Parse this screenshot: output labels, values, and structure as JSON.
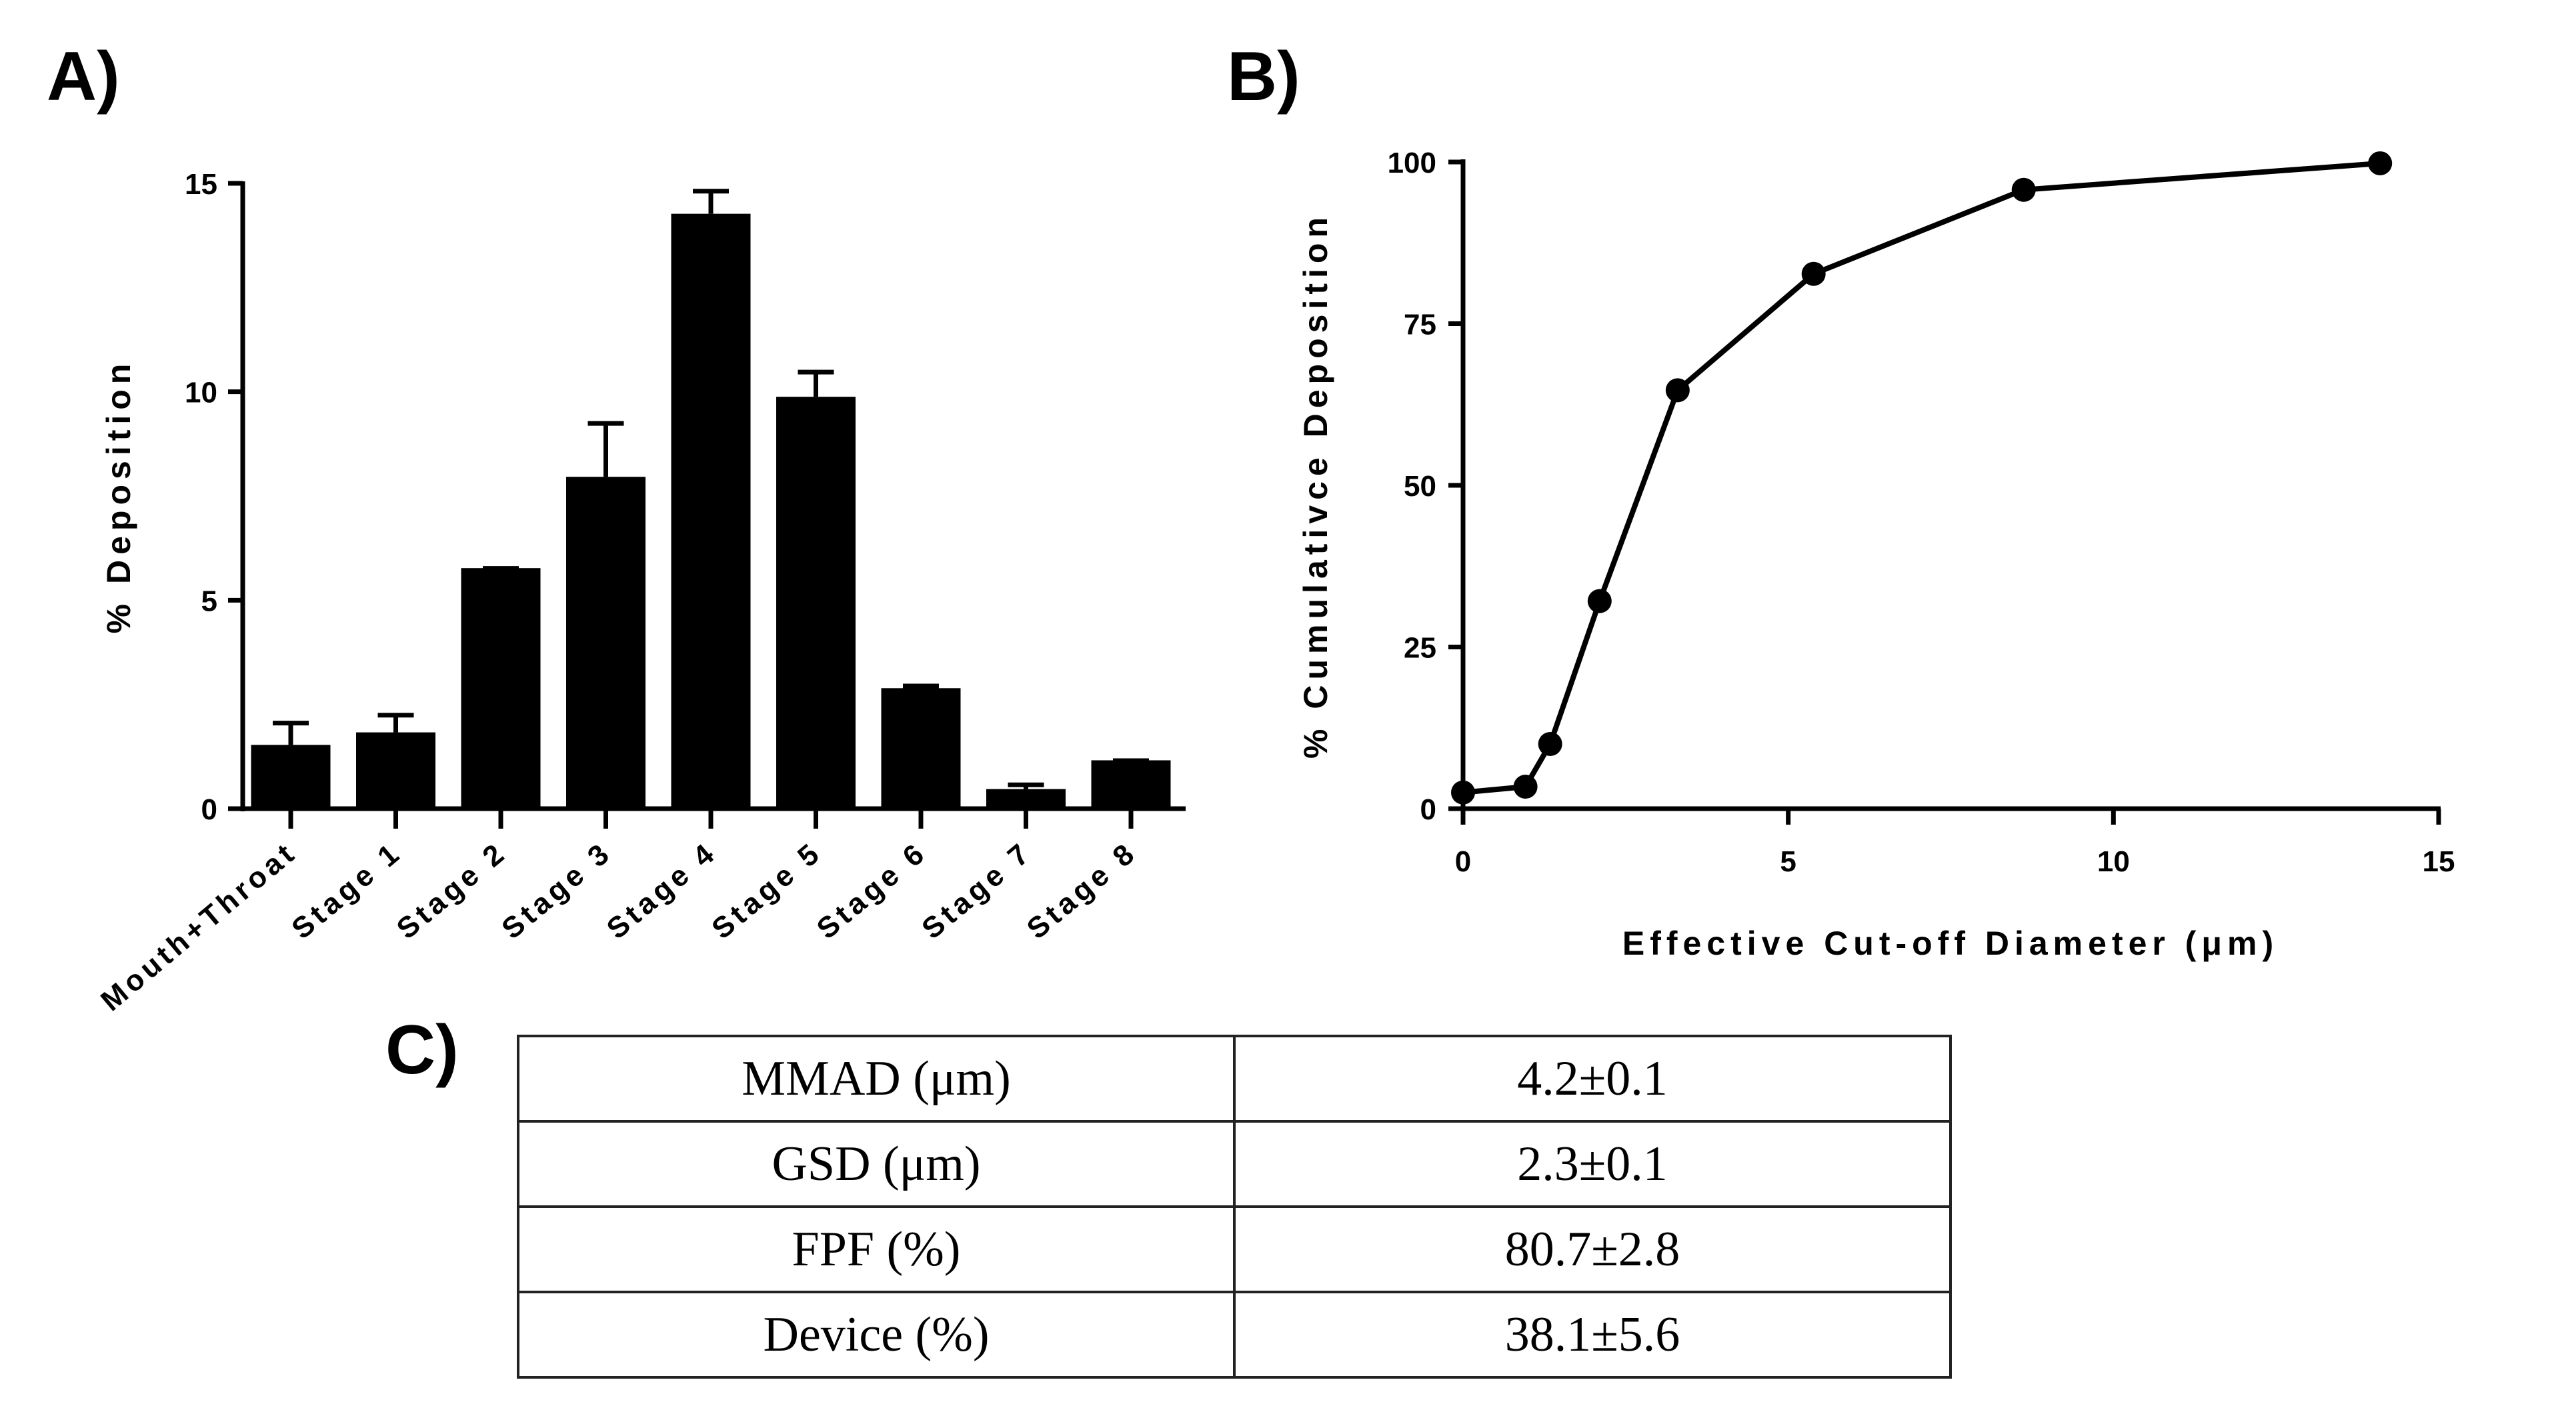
{
  "panel_labels": {
    "a": "A)",
    "b": "B)",
    "c": "C)"
  },
  "chart_data": [
    {
      "type": "bar",
      "panel": "A)",
      "title": "",
      "xlabel": "",
      "ylabel": "% Deposition",
      "ylim": [
        0,
        15
      ],
      "yticks": [
        0,
        5,
        10,
        15
      ],
      "categories": [
        "Mouth+Throat",
        "Stage 1",
        "Stage 2",
        "Stage 3",
        "Stage 4",
        "Stage 5",
        "Stage 6",
        "Stage 7",
        "Stage 8"
      ],
      "values": [
        1.53,
        1.83,
        5.77,
        7.96,
        14.27,
        9.88,
        2.89,
        0.47,
        1.16
      ],
      "error_upper": [
        2.1,
        2.29,
        5.81,
        9.29,
        14.86,
        10.52,
        2.99,
        0.62,
        1.2
      ],
      "color": "#000000"
    },
    {
      "type": "line",
      "panel": "B)",
      "title": "",
      "xlabel": "Effective Cut-off Diameter (μm)",
      "ylabel": "% Cumulativce Deposition",
      "xlim": [
        0,
        15
      ],
      "ylim": [
        0,
        100
      ],
      "xticks": [
        0,
        5,
        10,
        15
      ],
      "yticks": [
        0,
        25,
        50,
        75,
        100
      ],
      "x": [
        0,
        0.96,
        1.34,
        2.1,
        3.3,
        5.39,
        8.62,
        14.1
      ],
      "y": [
        2.5,
        3.4,
        10,
        32.1,
        64.7,
        82.7,
        95.7,
        99.8
      ],
      "color": "#000000"
    }
  ],
  "table": {
    "rows": [
      {
        "label": "MMAD (μm)",
        "value": "4.2±0.1"
      },
      {
        "label": "GSD (μm)",
        "value": "2.3±0.1"
      },
      {
        "label": "FPF (%)",
        "value": "80.7±2.8"
      },
      {
        "label": "Device (%)",
        "value": "38.1±5.6"
      }
    ]
  }
}
